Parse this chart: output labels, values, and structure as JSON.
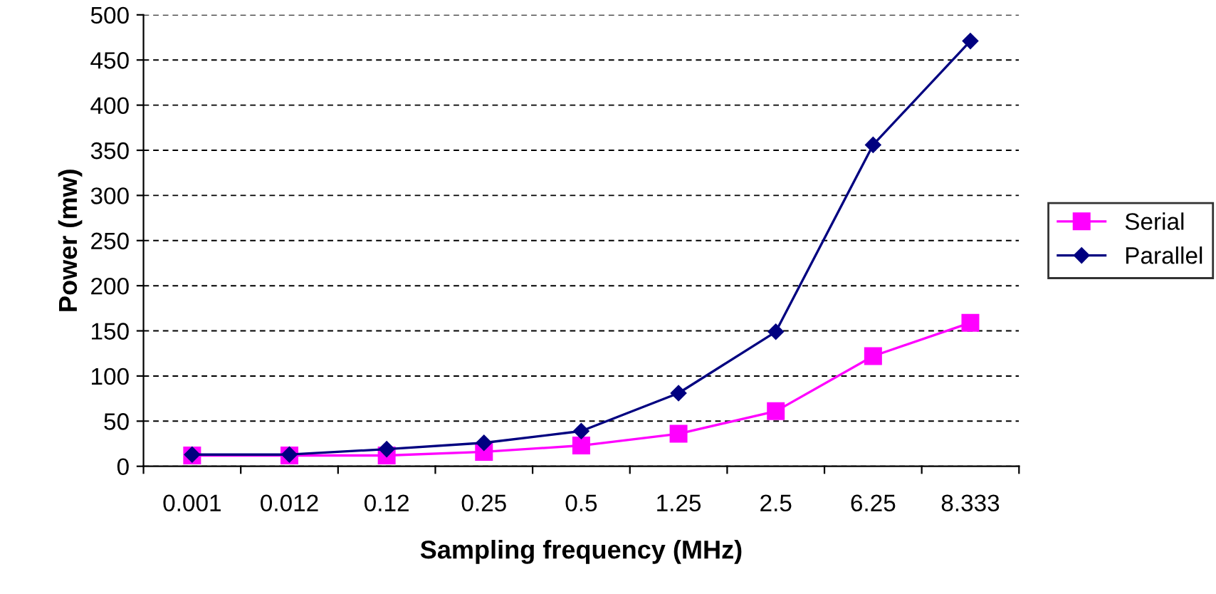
{
  "chart_data": {
    "type": "line",
    "xlabel": "Sampling frequency (MHz)",
    "ylabel": "Power (mw)",
    "categories": [
      "0.001",
      "0.012",
      "0.12",
      "0.25",
      "0.5",
      "1.25",
      "2.5",
      "6.25",
      "8.333"
    ],
    "series": [
      {
        "name": "Serial",
        "color": "#ff00ff",
        "marker": "square",
        "values": [
          12,
          12,
          12,
          16,
          23,
          36,
          61,
          122,
          159
        ]
      },
      {
        "name": "Parallel",
        "color": "#000080",
        "marker": "diamond",
        "values": [
          13,
          13,
          19,
          26,
          39,
          81,
          149,
          356,
          471
        ]
      }
    ],
    "ylim": [
      0,
      500
    ],
    "yticks": [
      0,
      50,
      100,
      150,
      200,
      250,
      300,
      350,
      400,
      450,
      500
    ],
    "grid": "y",
    "legend": "right",
    "line_style": "solid"
  }
}
